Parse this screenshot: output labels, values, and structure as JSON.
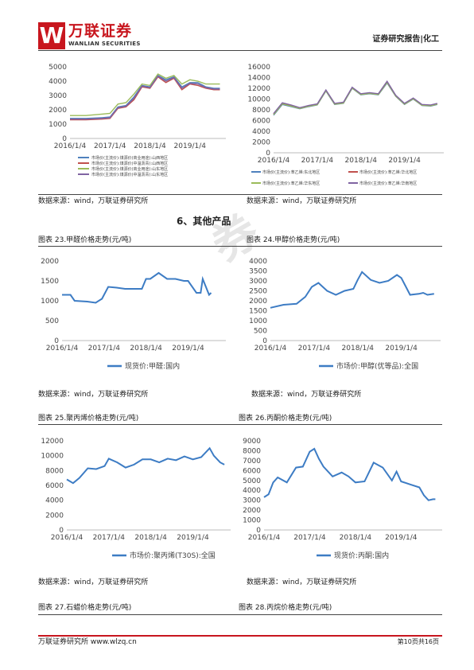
{
  "header": {
    "logo_mark": "W",
    "logo_cn": "万联证券",
    "logo_en": "WANLIAN SECURITIES",
    "report_type": "证券研究报告|化工"
  },
  "section_title": "6、其他产品",
  "source_text": "数据来源：wind，万联证券研究所",
  "footer": {
    "left": "万联证券研究所 www.wlzq.cn",
    "right": "第10页共16页"
  },
  "watermark": "券",
  "charts": {
    "c1": {
      "title": "",
      "legend": [
        "市场价(主流价):煤源价(商业用途):山西地区",
        "市场价(主流价):煤源价(中温沥青):山西地区",
        "市场价(主流价):煤源价(商业用途):山东地区",
        "市场价(主流价):煤源价(中温沥青):山东地区"
      ],
      "colors": [
        "#4f81bd",
        "#c0504d",
        "#9bbb59",
        "#8064a2"
      ]
    },
    "c2": {
      "title": "",
      "legend": [
        "市场价(主流价):苯乙烯:东北地区",
        "市场价(主流价):苯乙烯:华北地区",
        "市场价(主流价):苯乙烯:华东地区",
        "市场价(主流价):苯乙烯:华南地区"
      ],
      "colors": [
        "#4f81bd",
        "#c0504d",
        "#9bbb59",
        "#8064a2"
      ]
    },
    "c3": {
      "title": "图表 23.甲醛价格走势(元/吨)",
      "legend": [
        "现货价:甲醛:国内"
      ],
      "colors": [
        "#3d7cc4"
      ]
    },
    "c4": {
      "title": "图表 24.甲醇价格走势(元/吨)",
      "legend": [
        "市场价:甲醇(优等品):全国"
      ],
      "colors": [
        "#3d7cc4"
      ]
    },
    "c5": {
      "title": "图表 25.聚丙烯价格走势(元/吨)",
      "legend": [
        "市场价:聚丙烯(T30S):全国"
      ],
      "colors": [
        "#3d7cc4"
      ]
    },
    "c6": {
      "title": "图表 26.丙酮价格走势(元/吨)",
      "legend": [
        "现货价:丙酮:国内"
      ],
      "colors": [
        "#3d7cc4"
      ]
    }
  },
  "next_figures": {
    "left": "图表 27.石蜡价格走势(元/吨)",
    "right": "图表 28.丙烷价格走势(元/吨)"
  },
  "chart_data": [
    {
      "type": "line",
      "xlabel": "",
      "ylabel": "",
      "ylim": [
        0,
        5000
      ],
      "yticks": [
        0,
        1000,
        2000,
        3000,
        4000,
        5000
      ],
      "xticks": [
        "2016/1/4",
        "2017/1/4",
        "2018/1/4",
        "2019/1/4"
      ],
      "x": [
        2016.0,
        2016.4,
        2016.8,
        2017.0,
        2017.2,
        2017.4,
        2017.6,
        2017.8,
        2018.0,
        2018.2,
        2018.4,
        2018.6,
        2018.8,
        2019.0,
        2019.2,
        2019.4,
        2019.6,
        2019.75
      ],
      "series": [
        {
          "name": "市场价(主流价):煤源价(商业用途):山西地区",
          "values": [
            1400,
            1400,
            1450,
            1500,
            2200,
            2300,
            2900,
            3700,
            3600,
            4400,
            4100,
            4300,
            3600,
            3900,
            3900,
            3600,
            3500,
            3500
          ]
        },
        {
          "name": "市场价(主流价):煤源价(中温沥青):山西地区",
          "values": [
            1300,
            1300,
            1350,
            1400,
            2100,
            2200,
            2700,
            3600,
            3500,
            4300,
            3900,
            4200,
            3400,
            3800,
            3700,
            3500,
            3400,
            3400
          ]
        },
        {
          "name": "市场价(主流价):煤源价(商业用途):山东地区",
          "values": [
            1600,
            1600,
            1700,
            1750,
            2400,
            2500,
            3100,
            3800,
            3700,
            4500,
            4200,
            4400,
            3800,
            4100,
            4000,
            3800,
            3800,
            3800
          ]
        },
        {
          "name": "市场价(主流价):煤源价(中温沥青):山东地区",
          "values": [
            1350,
            1350,
            1400,
            1450,
            2150,
            2250,
            2800,
            3650,
            3550,
            4350,
            4000,
            4250,
            3500,
            3850,
            3800,
            3550,
            3450,
            3450
          ]
        }
      ]
    },
    {
      "type": "line",
      "xlabel": "",
      "ylabel": "",
      "ylim": [
        0,
        16000
      ],
      "yticks": [
        0,
        2000,
        4000,
        6000,
        8000,
        10000,
        12000,
        14000,
        16000
      ],
      "xticks": [
        "2016/1/4",
        "2017/1/4",
        "2018/1/4",
        "2019/1/4"
      ],
      "x": [
        2016.0,
        2016.2,
        2016.4,
        2016.6,
        2016.8,
        2017.0,
        2017.2,
        2017.4,
        2017.6,
        2017.8,
        2018.0,
        2018.2,
        2018.4,
        2018.6,
        2018.8,
        2019.0,
        2019.2,
        2019.4,
        2019.6,
        2019.75
      ],
      "series": [
        {
          "name": "市场价(主流价):苯乙烯:东北地区",
          "values": [
            7000,
            9000,
            8600,
            8200,
            8600,
            8900,
            11500,
            9000,
            9200,
            12000,
            10800,
            11000,
            10800,
            13000,
            10500,
            9000,
            10000,
            8800,
            8700,
            9000
          ]
        },
        {
          "name": "市场价(主流价):苯乙烯:华北地区",
          "values": [
            7200,
            9200,
            8800,
            8300,
            8700,
            9000,
            11600,
            9100,
            9300,
            12100,
            10900,
            11100,
            10900,
            13200,
            10600,
            9100,
            10100,
            8900,
            8800,
            9100
          ]
        },
        {
          "name": "市场价(主流价):苯乙烯:华东地区",
          "values": [
            7100,
            9100,
            8700,
            8250,
            8650,
            8950,
            11550,
            9050,
            9250,
            12050,
            10850,
            11050,
            10850,
            13100,
            10550,
            9050,
            10050,
            8850,
            8750,
            9050
          ]
        },
        {
          "name": "市场价(主流价):苯乙烯:华南地区",
          "values": [
            7300,
            9300,
            8900,
            8400,
            8800,
            9100,
            11700,
            9200,
            9400,
            12200,
            11000,
            11200,
            11000,
            13300,
            10700,
            9200,
            10200,
            9000,
            8900,
            9200
          ]
        }
      ]
    },
    {
      "type": "line",
      "xlabel": "",
      "ylabel": "",
      "ylim": [
        0,
        2000
      ],
      "yticks": [
        0,
        500,
        1000,
        1500,
        2000
      ],
      "xticks": [
        "2016/1/4",
        "2017/1/4",
        "2018/1/4",
        "2019/1/4"
      ],
      "x": [
        2016.0,
        2016.2,
        2016.3,
        2016.6,
        2016.8,
        2016.95,
        2017.1,
        2017.3,
        2017.5,
        2017.7,
        2017.9,
        2018.0,
        2018.1,
        2018.3,
        2018.5,
        2018.7,
        2018.9,
        2019.0,
        2019.2,
        2019.3,
        2019.35,
        2019.5,
        2019.55
      ],
      "series": [
        {
          "name": "现货价:甲醛:国内",
          "values": [
            1150,
            1150,
            1000,
            980,
            950,
            1050,
            1350,
            1330,
            1300,
            1300,
            1300,
            1550,
            1550,
            1700,
            1550,
            1550,
            1500,
            1500,
            1200,
            1200,
            1550,
            1150,
            1200
          ]
        }
      ]
    },
    {
      "type": "line",
      "xlabel": "",
      "ylabel": "",
      "ylim": [
        0,
        4000
      ],
      "yticks": [
        0,
        500,
        1000,
        1500,
        2000,
        2500,
        3000,
        3500,
        4000
      ],
      "xticks": [
        "2016/1/4",
        "2017/1/4",
        "2018/1/4",
        "2019/1/4"
      ],
      "x": [
        2016.0,
        2016.3,
        2016.6,
        2016.8,
        2016.95,
        2017.1,
        2017.3,
        2017.5,
        2017.7,
        2017.9,
        2018.0,
        2018.1,
        2018.3,
        2018.5,
        2018.7,
        2018.9,
        2019.0,
        2019.2,
        2019.4,
        2019.5,
        2019.6,
        2019.75
      ],
      "series": [
        {
          "name": "市场价:甲醇(优等品):全国",
          "values": [
            1650,
            1800,
            1850,
            2200,
            2700,
            2900,
            2500,
            2300,
            2500,
            2600,
            3050,
            3450,
            3050,
            2900,
            3000,
            3300,
            3150,
            2300,
            2350,
            2400,
            2300,
            2350
          ]
        }
      ]
    },
    {
      "type": "line",
      "xlabel": "",
      "ylabel": "",
      "ylim": [
        0,
        12000
      ],
      "yticks": [
        0,
        2000,
        4000,
        6000,
        8000,
        10000,
        12000
      ],
      "xticks": [
        "2016/1/4",
        "2017/1/4",
        "2018/1/4",
        "2019/1/4"
      ],
      "x": [
        2016.0,
        2016.15,
        2016.3,
        2016.5,
        2016.7,
        2016.9,
        2017.0,
        2017.2,
        2017.4,
        2017.6,
        2017.8,
        2018.0,
        2018.2,
        2018.4,
        2018.6,
        2018.8,
        2019.0,
        2019.2,
        2019.4,
        2019.5,
        2019.65,
        2019.75
      ],
      "series": [
        {
          "name": "市场价:聚丙烯(T30S):全国",
          "values": [
            6800,
            6300,
            7000,
            8300,
            8200,
            8600,
            9600,
            9100,
            8400,
            8800,
            9500,
            9500,
            9100,
            9600,
            9400,
            9900,
            9500,
            9800,
            11000,
            10000,
            9100,
            8800
          ]
        }
      ]
    },
    {
      "type": "line",
      "xlabel": "",
      "ylabel": "",
      "ylim": [
        0,
        9000
      ],
      "yticks": [
        0,
        1000,
        2000,
        3000,
        4000,
        5000,
        6000,
        7000,
        8000,
        9000
      ],
      "xticks": [
        "2016/1/4",
        "2017/1/4",
        "2018/1/4",
        "2019/1/4"
      ],
      "x": [
        2016.0,
        2016.1,
        2016.2,
        2016.3,
        2016.5,
        2016.7,
        2016.85,
        2017.0,
        2017.1,
        2017.2,
        2017.3,
        2017.5,
        2017.7,
        2017.85,
        2018.0,
        2018.2,
        2018.4,
        2018.6,
        2018.8,
        2018.9,
        2019.0,
        2019.2,
        2019.4,
        2019.5,
        2019.6,
        2019.7,
        2019.75
      ],
      "series": [
        {
          "name": "现货价:丙酮:国内",
          "values": [
            3300,
            3600,
            4800,
            5300,
            4800,
            6300,
            6400,
            7900,
            8200,
            7200,
            6400,
            5400,
            5800,
            5400,
            4800,
            4900,
            6800,
            6300,
            5000,
            5900,
            4900,
            4600,
            4300,
            3500,
            3000,
            3100,
            3100
          ]
        }
      ]
    }
  ]
}
